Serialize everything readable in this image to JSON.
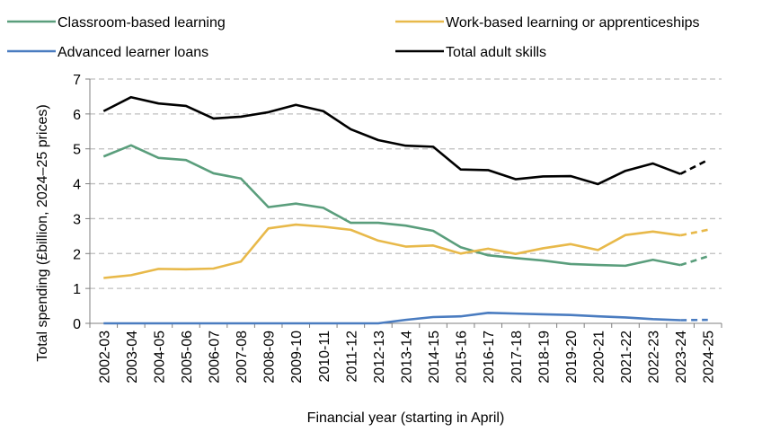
{
  "chart_data": {
    "type": "line",
    "xlabel": "Financial year (starting in April)",
    "ylabel": "Total spending (£billion, 2024–25 prices)",
    "ylim": [
      0,
      7
    ],
    "yticks": [
      0,
      1,
      2,
      3,
      4,
      5,
      6,
      7
    ],
    "grid": "horizontal dashed",
    "legend_position": "top",
    "categories": [
      "2002-03",
      "2003-04",
      "2004-05",
      "2005-06",
      "2006-07",
      "2007-08",
      "2008-09",
      "2009-10",
      "2010-11",
      "2011-12",
      "2012-13",
      "2013-14",
      "2014-15",
      "2015-16",
      "2016-17",
      "2017-18",
      "2018-19",
      "2019-20",
      "2020-21",
      "2021-22",
      "2022-23",
      "2023-24",
      "2024-25"
    ],
    "projection_from_index": 21,
    "series": [
      {
        "name": "Classroom-based learning",
        "color": "#5a9e7c",
        "values": [
          4.78,
          5.1,
          4.74,
          4.68,
          4.3,
          4.15,
          3.33,
          3.43,
          3.31,
          2.88,
          2.88,
          2.8,
          2.65,
          2.18,
          1.95,
          1.87,
          1.8,
          1.7,
          1.67,
          1.65,
          1.82,
          1.67,
          1.92
        ]
      },
      {
        "name": "Work-based learning or apprenticeships",
        "color": "#e8b94a",
        "values": [
          1.3,
          1.38,
          1.56,
          1.55,
          1.57,
          1.77,
          2.72,
          2.83,
          2.77,
          2.68,
          2.37,
          2.2,
          2.23,
          2.0,
          2.14,
          1.99,
          2.15,
          2.27,
          2.1,
          2.53,
          2.63,
          2.52,
          2.68
        ]
      },
      {
        "name": "Advanced learner loans",
        "color": "#4a7cc0",
        "values": [
          0,
          0,
          0,
          0,
          0,
          0,
          0,
          0,
          0,
          0,
          0,
          0.1,
          0.18,
          0.2,
          0.3,
          0.28,
          0.26,
          0.24,
          0.2,
          0.17,
          0.12,
          0.09,
          0.1
        ]
      },
      {
        "name": "Total adult skills",
        "color": "#000000",
        "values": [
          6.08,
          6.48,
          6.3,
          6.23,
          5.87,
          5.92,
          6.05,
          6.26,
          6.08,
          5.56,
          5.25,
          5.09,
          5.06,
          4.41,
          4.39,
          4.13,
          4.21,
          4.22,
          3.99,
          4.37,
          4.58,
          4.28,
          4.68
        ]
      }
    ]
  }
}
